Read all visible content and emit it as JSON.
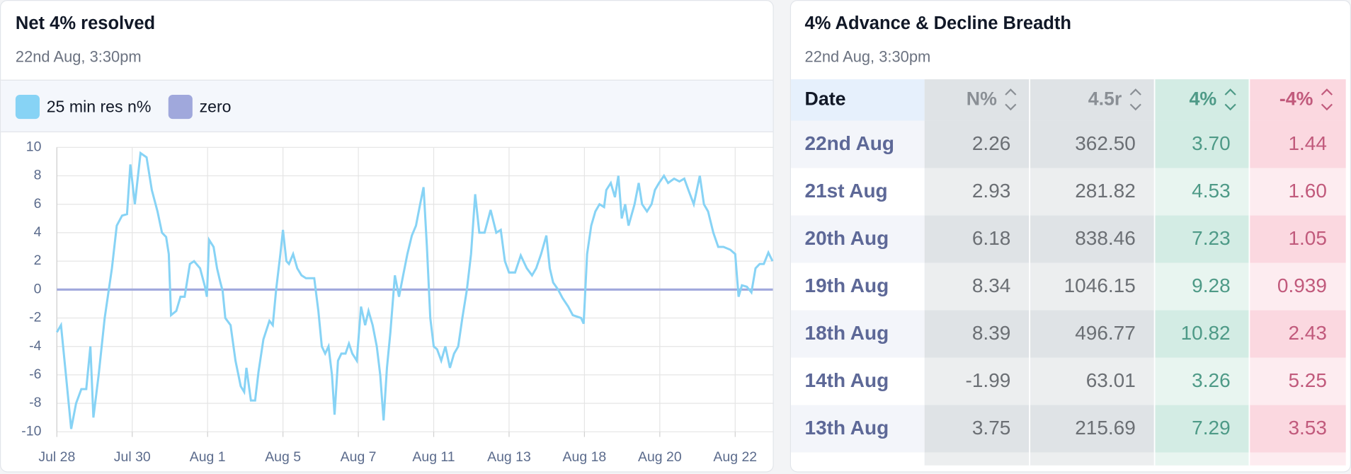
{
  "chart_data": {
    "type": "line",
    "title": "Net 4% resolved",
    "subtitle": "22nd Aug, 3:30pm",
    "xlim": [
      0,
      19
    ],
    "xticks": [
      {
        "value": 0,
        "label": "Jul 28"
      },
      {
        "value": 2,
        "label": "Jul 30"
      },
      {
        "value": 4,
        "label": "Aug 1"
      },
      {
        "value": 6,
        "label": "Aug 5"
      },
      {
        "value": 8,
        "label": "Aug 7"
      },
      {
        "value": 10,
        "label": "Aug 11"
      },
      {
        "value": 12,
        "label": "Aug 13"
      },
      {
        "value": 14,
        "label": "Aug 18"
      },
      {
        "value": 16,
        "label": "Aug 20"
      },
      {
        "value": 18,
        "label": "Aug 22"
      }
    ],
    "ylim": [
      -10,
      10
    ],
    "yticks": [
      -10,
      -8,
      -6,
      -4,
      -2,
      0,
      2,
      4,
      6,
      8,
      10
    ],
    "grid": true,
    "series": [
      {
        "name": "25 min res n%",
        "color": "#87d3f5",
        "x": [
          0,
          0.11,
          0.24,
          0.38,
          0.51,
          0.65,
          0.78,
          0.89,
          0.97,
          1.11,
          1.27,
          1.46,
          1.59,
          1.73,
          1.86,
          1.95,
          2.07,
          2.22,
          2.38,
          2.52,
          2.67,
          2.79,
          2.9,
          2.97,
          3.03,
          3.17,
          3.28,
          3.39,
          3.53,
          3.64,
          3.8,
          3.93,
          3.98,
          4.04,
          4.16,
          4.25,
          4.34,
          4.4,
          4.47,
          4.61,
          4.74,
          4.88,
          4.97,
          5.03,
          5.15,
          5.26,
          5.35,
          5.48,
          5.64,
          5.73,
          5.82,
          5.93,
          6,
          6.09,
          6.16,
          6.27,
          6.38,
          6.49,
          6.61,
          6.83,
          6.94,
          7.03,
          7.12,
          7.21,
          7.3,
          7.37,
          7.46,
          7.55,
          7.66,
          7.75,
          7.84,
          7.96,
          8.07,
          8.18,
          8.27,
          8.38,
          8.49,
          8.58,
          8.67,
          8.76,
          8.85,
          8.97,
          9.08,
          9.19,
          9.3,
          9.42,
          9.53,
          9.64,
          9.73,
          9.82,
          9.91,
          10,
          10.09,
          10.2,
          10.31,
          10.43,
          10.54,
          10.65,
          10.76,
          10.88,
          10.99,
          11.1,
          11.21,
          11.35,
          11.51,
          11.66,
          11.78,
          11.89,
          12,
          12.16,
          12.31,
          12.47,
          12.61,
          12.72,
          12.85,
          12.99,
          13.08,
          13.17,
          13.3,
          13.42,
          13.57,
          13.69,
          13.91,
          13.98,
          14.07,
          14.18,
          14.29,
          14.4,
          14.52,
          14.58,
          14.7,
          14.81,
          14.9,
          14.99,
          15.08,
          15.17,
          15.33,
          15.44,
          15.53,
          15.66,
          15.78,
          15.87,
          15.98,
          16.11,
          16.22,
          16.38,
          16.52,
          16.65,
          16.76,
          16.9,
          17.06,
          17.17,
          17.28,
          17.42,
          17.55,
          17.69,
          17.87,
          18,
          18.09,
          18.18,
          18.31,
          18.43,
          18.54,
          18.65,
          18.76,
          18.88,
          18.99
        ],
        "values": [
          -3,
          -2.5,
          -6,
          -9.8,
          -8,
          -7,
          -7,
          -4,
          -9,
          -6,
          -2,
          1.5,
          4.5,
          5.2,
          5.3,
          8.8,
          6,
          9.6,
          9.3,
          7,
          5.5,
          4,
          3.7,
          2.5,
          -1.8,
          -1.5,
          -0.5,
          -0.5,
          1.8,
          2,
          1.5,
          0.2,
          -0.5,
          3.5,
          3,
          1.5,
          0.5,
          -0.1,
          -2,
          -2.5,
          -5,
          -6.8,
          -7.2,
          -5.5,
          -7.8,
          -7.8,
          -5.8,
          -3.5,
          -2.2,
          -2.5,
          0,
          2.5,
          4.2,
          2,
          1.8,
          2.5,
          1.5,
          1,
          0.8,
          0.8,
          -1.5,
          -4,
          -4.5,
          -4,
          -6,
          -8.8,
          -5,
          -4.5,
          -4.5,
          -3.8,
          -4.5,
          -5,
          -1.2,
          -2.5,
          -1.5,
          -2.5,
          -4,
          -6,
          -9.2,
          -5.5,
          -3,
          1,
          -0.5,
          1,
          2.5,
          3.8,
          4.5,
          6,
          7.2,
          3,
          -2,
          -4,
          -4.2,
          -5,
          -4,
          -5.5,
          -4.5,
          -4,
          -2,
          0,
          2.5,
          6.7,
          4,
          4,
          5.6,
          4,
          4.2,
          2,
          1.2,
          1.2,
          2.4,
          1.5,
          1,
          1.5,
          2.5,
          3.8,
          1.5,
          0.5,
          0,
          -0.6,
          -1.2,
          -1.8,
          -2,
          -2.4,
          2.5,
          4.5,
          5.5,
          6,
          5.8,
          7,
          7.5,
          6.5,
          8,
          5,
          6,
          4.5,
          6,
          7.5,
          6,
          5.5,
          6,
          7,
          7.5,
          8,
          7.5,
          7.8,
          7.6,
          7.8,
          7,
          6,
          8,
          6,
          5.5,
          4,
          3,
          3,
          2.8,
          2.5,
          -0.5,
          0.3,
          0.2,
          -0.2,
          1.5,
          1.8,
          1.8,
          2.6,
          2
        ]
      },
      {
        "name": "zero",
        "color": "#a0a8dc",
        "x": [
          0,
          19
        ],
        "values": [
          0,
          0
        ]
      }
    ]
  },
  "table": {
    "title": "4% Advance & Decline Breadth",
    "subtitle": "22nd Aug, 3:30pm",
    "columns": [
      "Date",
      "N%",
      "4.5r",
      "4%",
      "-4%"
    ],
    "rows": [
      [
        "22nd Aug",
        "2.26",
        "362.50",
        "3.70",
        "1.44"
      ],
      [
        "21st Aug",
        "2.93",
        "281.82",
        "4.53",
        "1.60"
      ],
      [
        "20th Aug",
        "6.18",
        "838.46",
        "7.23",
        "1.05"
      ],
      [
        "19th Aug",
        "8.34",
        "1046.15",
        "9.28",
        "0.939"
      ],
      [
        "18th Aug",
        "8.39",
        "496.77",
        "10.82",
        "2.43"
      ],
      [
        "14th Aug",
        "-1.99",
        "63.01",
        "3.26",
        "5.25"
      ],
      [
        "13th Aug",
        "3.75",
        "215.69",
        "7.29",
        "3.53"
      ]
    ]
  }
}
